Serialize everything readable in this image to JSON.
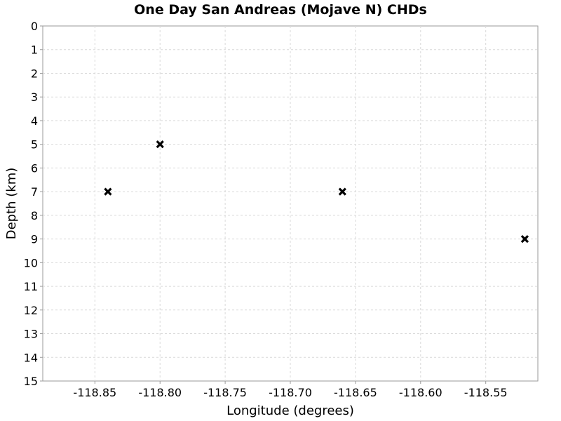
{
  "chart_data": {
    "type": "scatter",
    "title": "One Day San Andreas (Mojave N) CHDs",
    "xlabel": "Longitude (degrees)",
    "ylabel": "Depth (km)",
    "xlim": [
      -118.89,
      -118.51
    ],
    "ylim": [
      0,
      15
    ],
    "y_inverted": true,
    "grid": true,
    "marker": "x",
    "x_ticks": [
      "-118.85",
      "-118.80",
      "-118.75",
      "-118.70",
      "-118.65",
      "-118.60",
      "-118.55"
    ],
    "x_tick_values": [
      -118.85,
      -118.8,
      -118.75,
      -118.7,
      -118.65,
      -118.6,
      -118.55
    ],
    "y_ticks": [
      "0",
      "1",
      "2",
      "3",
      "4",
      "5",
      "6",
      "7",
      "8",
      "9",
      "10",
      "11",
      "12",
      "13",
      "14",
      "15"
    ],
    "y_tick_values": [
      0,
      1,
      2,
      3,
      4,
      5,
      6,
      7,
      8,
      9,
      10,
      11,
      12,
      13,
      14,
      15
    ],
    "points": [
      {
        "x": -118.84,
        "y": 7
      },
      {
        "x": -118.8,
        "y": 5
      },
      {
        "x": -118.66,
        "y": 7
      },
      {
        "x": -118.52,
        "y": 9
      }
    ]
  }
}
